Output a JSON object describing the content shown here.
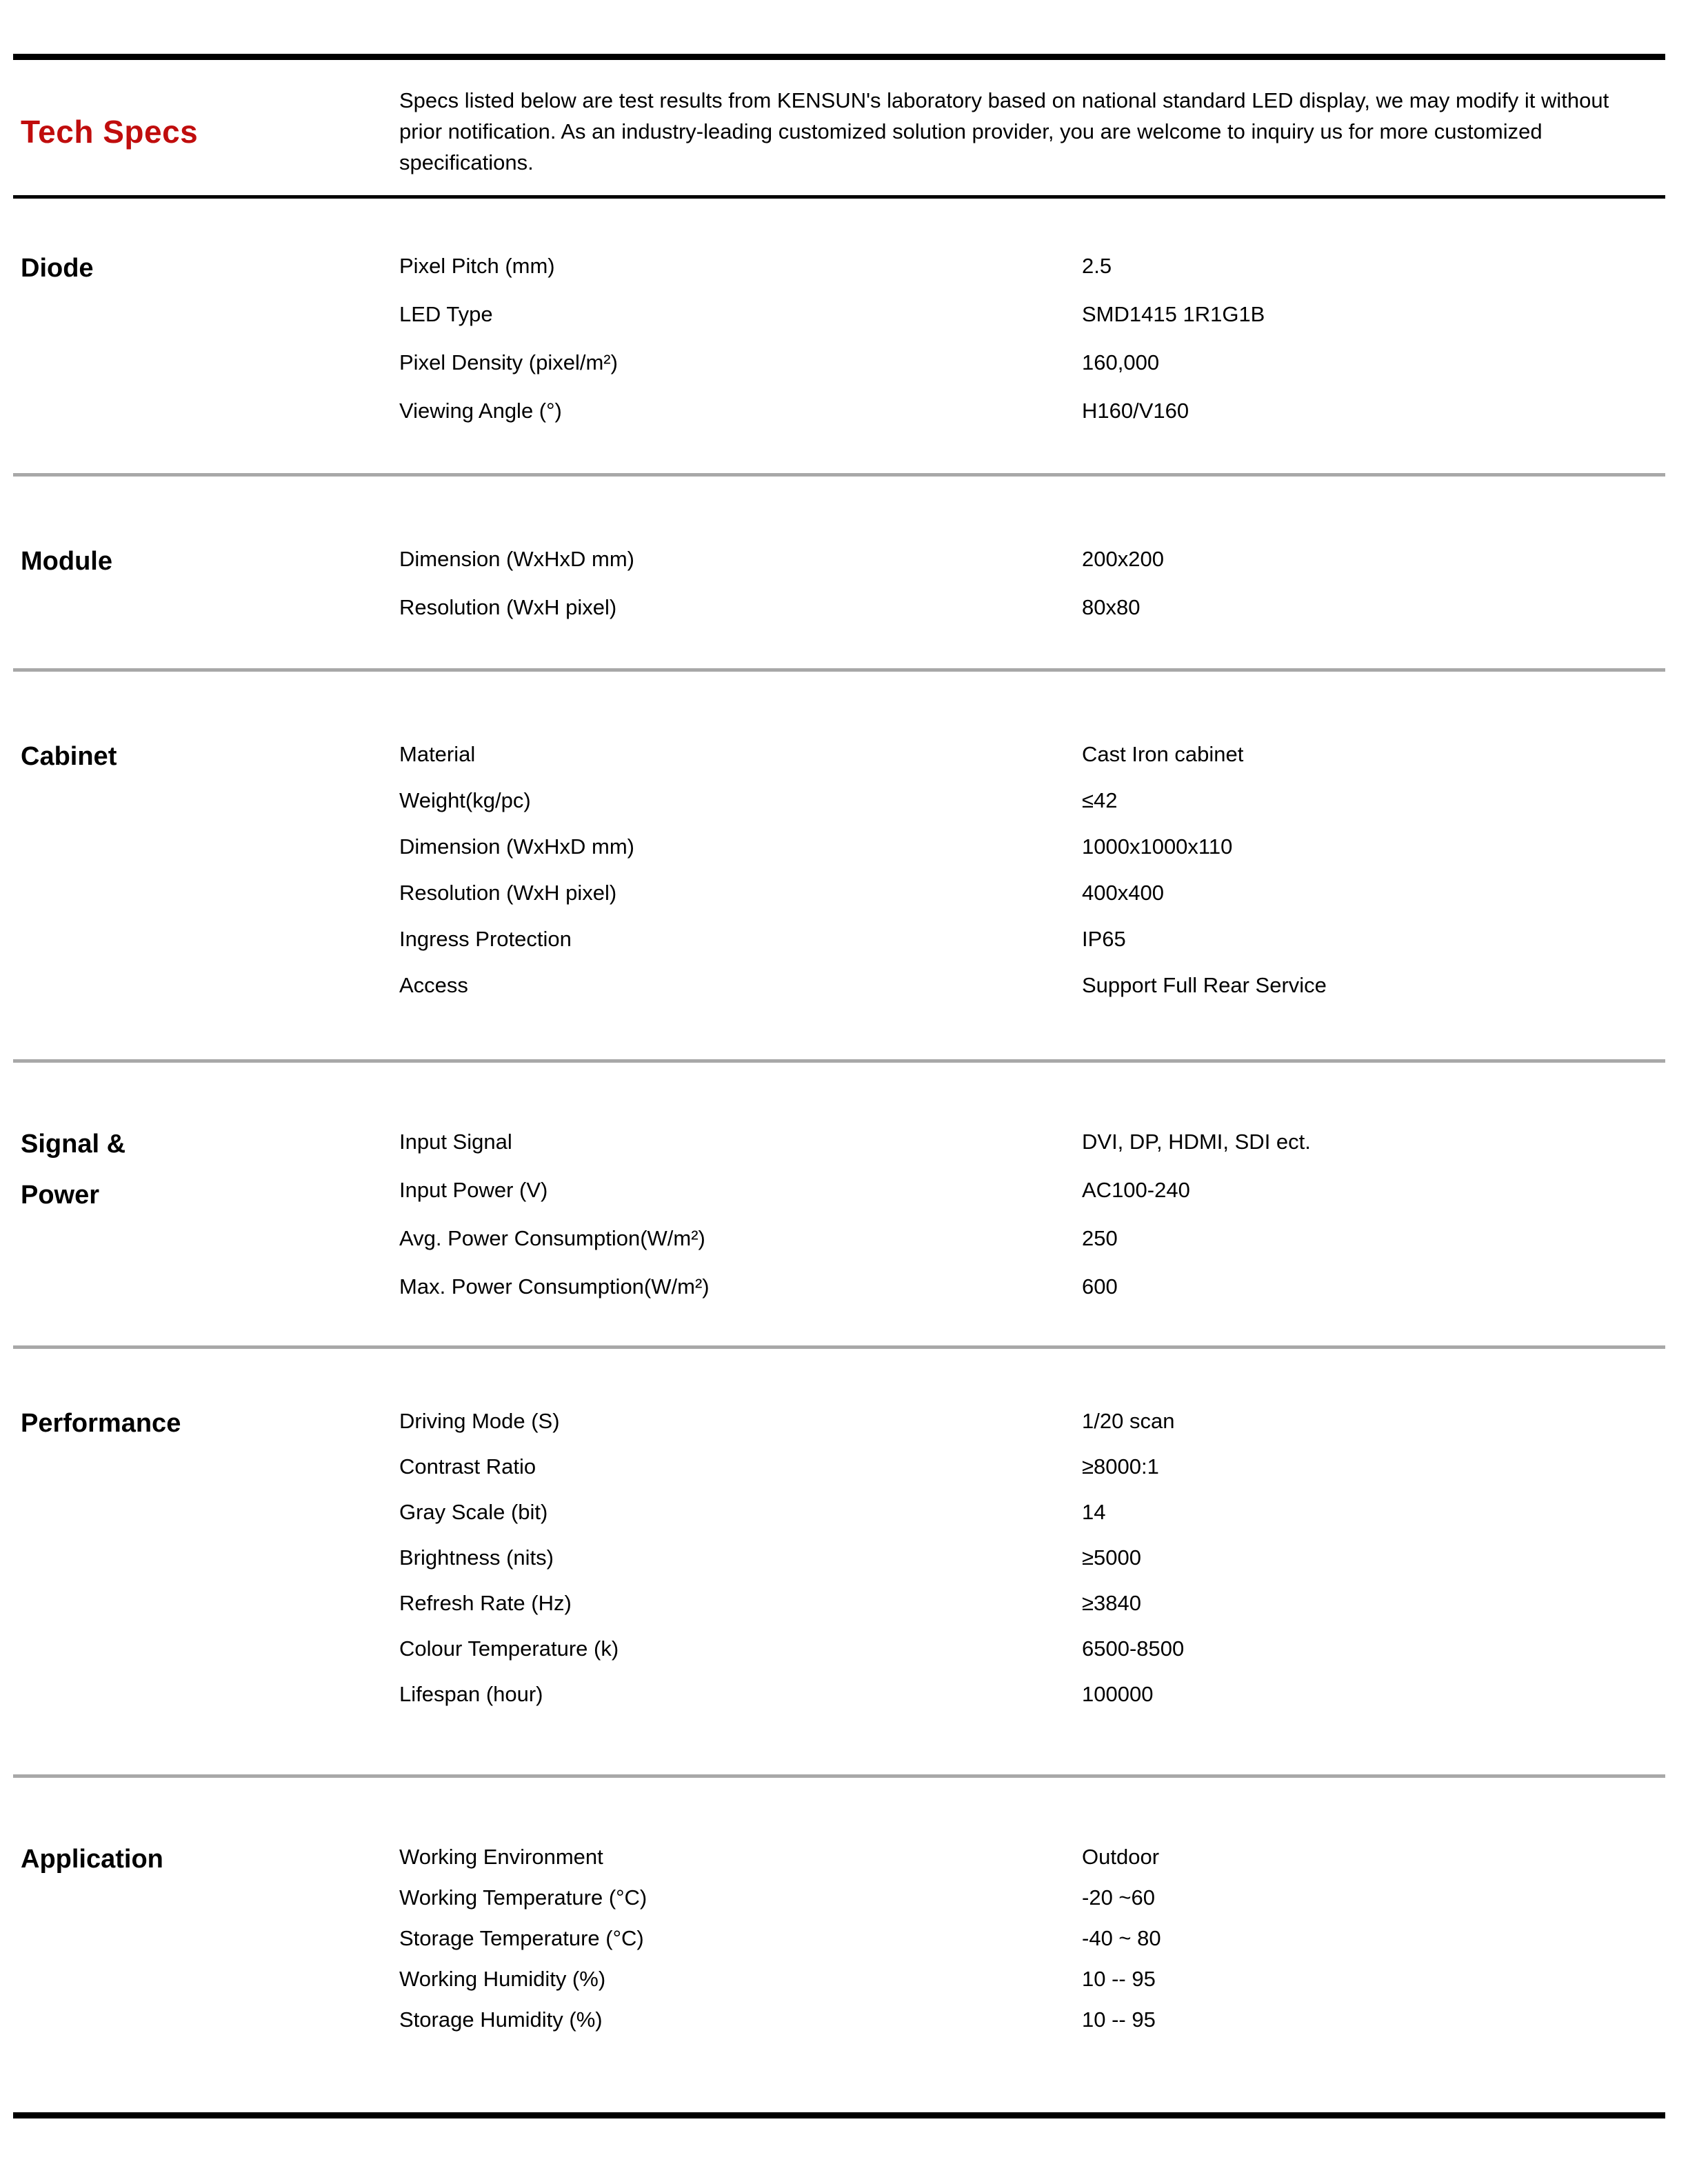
{
  "header": {
    "title": "Tech Specs",
    "description": "Specs listed below are test results from KENSUN's laboratory based on national standard LED display, we may modify it without prior notification. As an industry-leading customized solution provider, you are welcome to inquiry us for more customized specifications."
  },
  "colors": {
    "accent_red": "#c00d0d",
    "divider_gray": "#a8a8a8",
    "rule_black": "#000000"
  },
  "sections": [
    {
      "title": "Diode",
      "rows": [
        {
          "label": "Pixel Pitch (mm)",
          "value": "2.5"
        },
        {
          "label": "LED Type",
          "value": "SMD1415 1R1G1B"
        },
        {
          "label": "Pixel Density (pixel/m²)",
          "value": "160,000"
        },
        {
          "label": "Viewing Angle (°)",
          "value": "H160/V160"
        }
      ]
    },
    {
      "title": "Module",
      "rows": [
        {
          "label": "Dimension (WxHxD mm)",
          "value": "200x200"
        },
        {
          "label": "Resolution (WxH pixel)",
          "value": "80x80"
        }
      ]
    },
    {
      "title": "Cabinet",
      "rows": [
        {
          "label": "Material",
          "value": "Cast Iron cabinet"
        },
        {
          "label": "Weight(kg/pc)",
          "value": "≤42"
        },
        {
          "label": "Dimension (WxHxD mm)",
          "value": "1000x1000x110"
        },
        {
          "label": "Resolution (WxH pixel)",
          "value": "400x400"
        },
        {
          "label": "Ingress Protection",
          "value": "IP65"
        },
        {
          "label": "Access",
          "value": "Support Full Rear Service"
        }
      ]
    },
    {
      "title": "Signal &\nPower",
      "rows": [
        {
          "label": "Input Signal",
          "value": "DVI, DP, HDMI, SDI ect."
        },
        {
          "label": "Input Power (V)",
          "value": "AC100-240"
        },
        {
          "label": "Avg. Power Consumption(W/m²)",
          "value": "250"
        },
        {
          "label": "Max. Power Consumption(W/m²)",
          "value": "600"
        }
      ]
    },
    {
      "title": "Performance",
      "rows": [
        {
          "label": "Driving Mode (S)",
          "value": "1/20 scan"
        },
        {
          "label": "Contrast Ratio",
          "value": "≥8000:1"
        },
        {
          "label": "Gray Scale (bit)",
          "value": "14"
        },
        {
          "label": "Brightness (nits)",
          "value": "≥5000"
        },
        {
          "label": "Refresh Rate (Hz)",
          "value": "≥3840"
        },
        {
          "label": "Colour Temperature (k)",
          "value": "6500-8500"
        },
        {
          "label": "Lifespan (hour)",
          "value": "100000"
        }
      ]
    },
    {
      "title": "Application",
      "rows": [
        {
          "label": "Working Environment",
          "value": "Outdoor"
        },
        {
          "label": "Working Temperature (°C)",
          "value": "-20 ~60"
        },
        {
          "label": "Storage Temperature (°C)",
          "value": "-40 ~ 80"
        },
        {
          "label": "Working Humidity (%)",
          "value": "10 -- 95"
        },
        {
          "label": "Storage Humidity (%)",
          "value": "10 -- 95"
        }
      ]
    }
  ]
}
